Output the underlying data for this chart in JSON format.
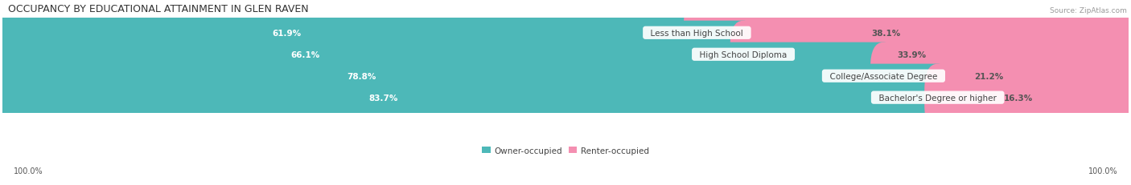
{
  "title": "OCCUPANCY BY EDUCATIONAL ATTAINMENT IN GLEN RAVEN",
  "source": "Source: ZipAtlas.com",
  "categories": [
    "Less than High School",
    "High School Diploma",
    "College/Associate Degree",
    "Bachelor's Degree or higher"
  ],
  "owner_pct": [
    61.9,
    66.1,
    78.8,
    83.7
  ],
  "renter_pct": [
    38.1,
    33.9,
    21.2,
    16.3
  ],
  "owner_color": "#4db8b8",
  "renter_color": "#f48fb1",
  "row_bg_color_odd": "#efefef",
  "row_bg_color_even": "#f8f8f8",
  "title_fontsize": 9,
  "pct_label_fontsize": 7.5,
  "cat_label_fontsize": 7.5,
  "tick_fontsize": 7,
  "legend_fontsize": 7.5,
  "source_fontsize": 6.5,
  "left_label_100": "100.0%",
  "right_label_100": "100.0%"
}
